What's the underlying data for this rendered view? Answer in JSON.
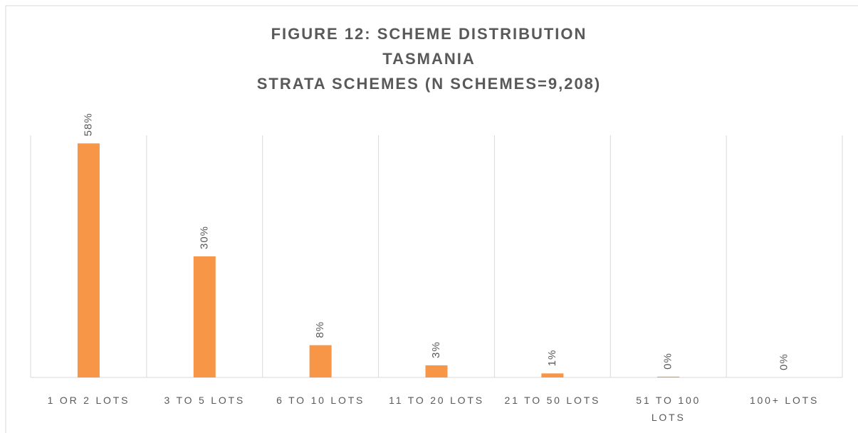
{
  "chart_data": {
    "type": "bar",
    "title": "FIGURE 12: SCHEME DISTRIBUTION\nTASMANIA\nSTRATA SCHEMES (N SCHEMES=9,208)",
    "categories": [
      "1 OR 2 LOTS",
      "3 TO 5 LOTS",
      "6 TO 10 LOTS",
      "11 TO 20 LOTS",
      "21 TO 50 LOTS",
      "51 TO 100 LOTS",
      "100+ LOTS"
    ],
    "values": [
      58,
      30,
      8,
      3,
      1,
      0.2,
      0
    ],
    "value_labels": [
      "58%",
      "30%",
      "8%",
      "3%",
      "1%",
      "0%",
      "0%"
    ],
    "color": "#f79646",
    "ylim": [
      0,
      60
    ]
  }
}
